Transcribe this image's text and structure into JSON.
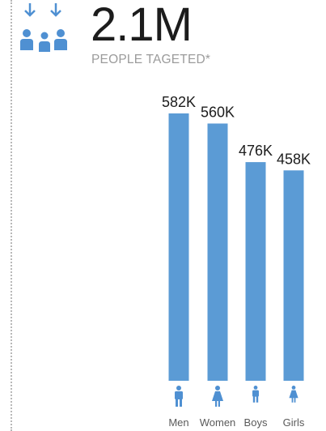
{
  "header": {
    "total": "2.1M",
    "subtitle": "PEOPLE TAGETED*",
    "icon": "family-with-down-arrows-icon"
  },
  "colors": {
    "bar": "#5b9bd5",
    "icon": "#4f90d2",
    "text": "#1c1c1c",
    "muted": "#9b9b9b"
  },
  "chart_data": {
    "type": "bar",
    "categories": [
      "Men",
      "Women",
      "Boys",
      "Girls"
    ],
    "values": [
      582,
      560,
      476,
      458
    ],
    "value_labels": [
      "582K",
      "560K",
      "476K",
      "458K"
    ],
    "category_icons": [
      "man-icon",
      "woman-icon",
      "boy-icon",
      "girl-icon"
    ],
    "ylim": [
      0,
      600
    ]
  }
}
